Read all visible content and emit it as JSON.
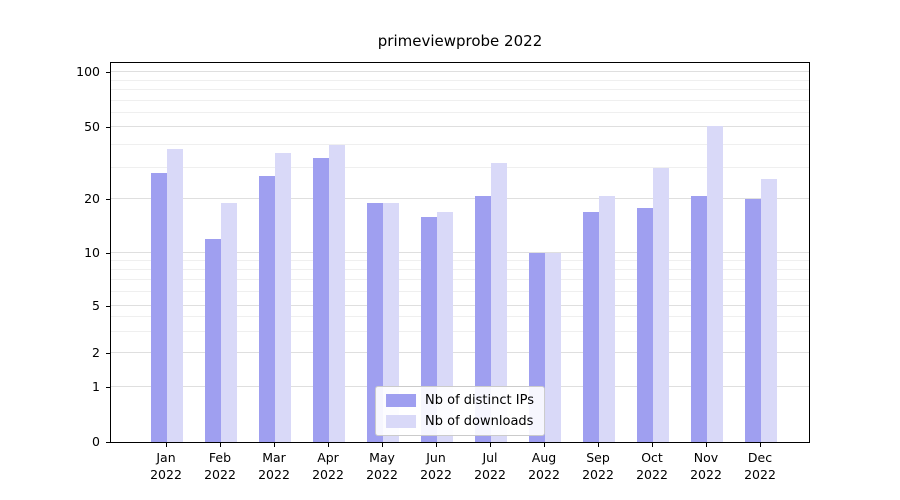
{
  "chart_data": {
    "type": "bar",
    "title": "primeviewprobe 2022",
    "categories": [
      "Jan",
      "Feb",
      "Mar",
      "Apr",
      "May",
      "Jun",
      "Jul",
      "Aug",
      "Sep",
      "Oct",
      "Nov",
      "Dec"
    ],
    "year": "2022",
    "series": [
      {
        "name": "Nb of distinct IPs",
        "color": "#9f9ff0",
        "values": [
          28,
          12,
          27,
          34,
          19,
          16,
          21,
          10,
          17,
          18,
          21,
          20
        ]
      },
      {
        "name": "Nb of downloads",
        "color": "#d9d9f8",
        "values": [
          38,
          19,
          36,
          40,
          19,
          17,
          32,
          10,
          21,
          30,
          51,
          26
        ]
      }
    ],
    "yaxis": {
      "scale": "log",
      "ticks": [
        0,
        1,
        2,
        5,
        10,
        20,
        50,
        100
      ],
      "minor_gridlines": [
        3,
        4,
        6,
        7,
        8,
        9,
        30,
        40,
        60,
        70,
        80,
        90
      ],
      "range": [
        0,
        100
      ]
    },
    "xlabel": "",
    "ylabel": "",
    "grid": true,
    "legend_position": "lower center"
  }
}
